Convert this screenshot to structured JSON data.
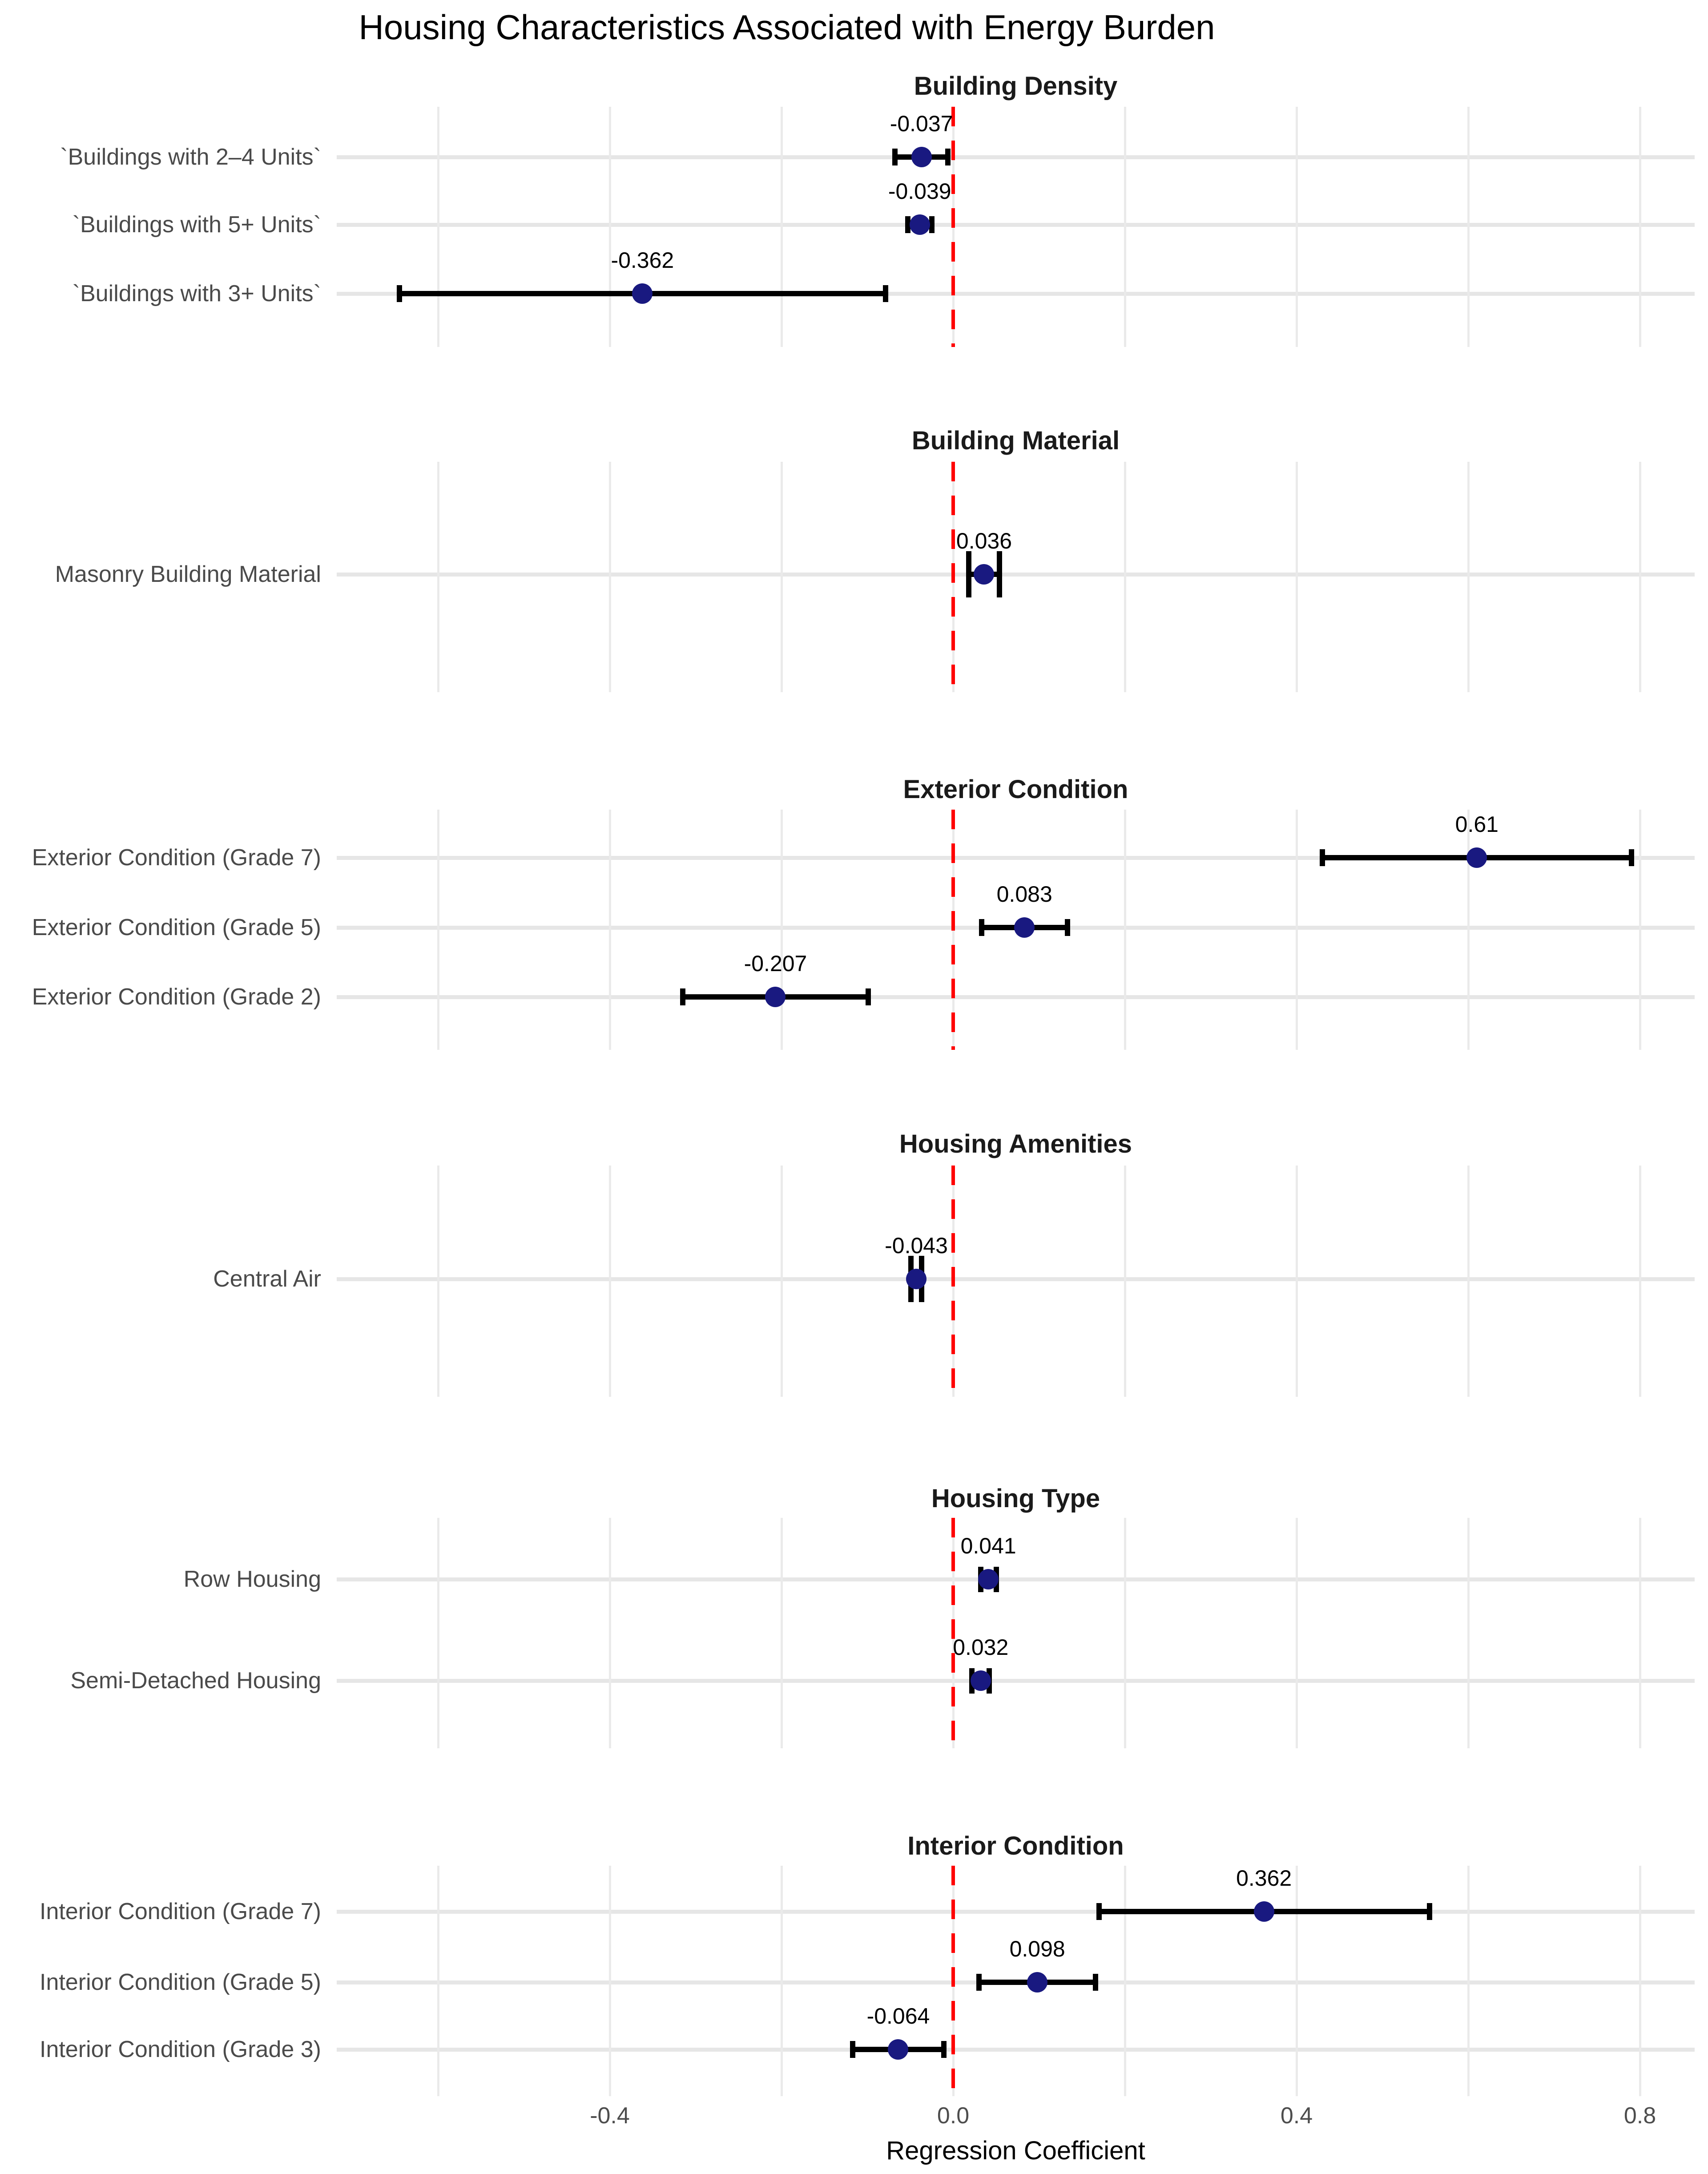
{
  "chart_data": {
    "type": "scatter",
    "subtype": "forest-plot-faceted",
    "title": "Housing Characteristics Associated with Energy Burden",
    "xlabel": "Regression Coefficient",
    "ylabel": "",
    "xlim": [
      -0.72,
      0.86
    ],
    "grid": "on",
    "legend_position": "none",
    "x_gridlines": [
      -0.6,
      -0.4,
      -0.2,
      0.0,
      0.2,
      0.4,
      0.6,
      0.8
    ],
    "x_ticks": [
      -0.4,
      0.0,
      0.4,
      0.8
    ],
    "x_tick_labels": [
      "-0.4",
      "0.0",
      "0.4",
      "0.8"
    ],
    "reference_line_x": 0,
    "facets": [
      {
        "title": "Building Density",
        "rows": [
          {
            "label": "`Buildings with 2–4 Units`",
            "estimate": -0.037,
            "estimate_text": "-0.037",
            "ci_low": -0.068,
            "ci_high": -0.006
          },
          {
            "label": "`Buildings with 5+ Units`",
            "estimate": -0.039,
            "estimate_text": "-0.039",
            "ci_low": -0.053,
            "ci_high": -0.025
          },
          {
            "label": "`Buildings with 3+ Units`",
            "estimate": -0.362,
            "estimate_text": "-0.362",
            "ci_low": -0.645,
            "ci_high": -0.079
          }
        ]
      },
      {
        "title": "Building Material",
        "rows": [
          {
            "label": "Masonry Building Material",
            "estimate": 0.036,
            "estimate_text": "0.036",
            "ci_low": 0.018,
            "ci_high": 0.054
          }
        ]
      },
      {
        "title": "Exterior Condition",
        "rows": [
          {
            "label": "Exterior Condition (Grade 7)",
            "estimate": 0.61,
            "estimate_text": "0.61",
            "ci_low": 0.43,
            "ci_high": 0.79
          },
          {
            "label": "Exterior Condition (Grade 5)",
            "estimate": 0.083,
            "estimate_text": "0.083",
            "ci_low": 0.033,
            "ci_high": 0.133
          },
          {
            "label": "Exterior Condition (Grade 2)",
            "estimate": -0.207,
            "estimate_text": "-0.207",
            "ci_low": -0.315,
            "ci_high": -0.099
          }
        ]
      },
      {
        "title": "Housing Amenities",
        "rows": [
          {
            "label": "Central Air",
            "estimate": -0.043,
            "estimate_text": "-0.043",
            "ci_low": -0.049,
            "ci_high": -0.037
          }
        ]
      },
      {
        "title": "Housing Type",
        "rows": [
          {
            "label": "Row Housing",
            "estimate": 0.041,
            "estimate_text": "0.041",
            "ci_low": 0.032,
            "ci_high": 0.05
          },
          {
            "label": "Semi-Detached Housing",
            "estimate": 0.032,
            "estimate_text": "0.032",
            "ci_low": 0.022,
            "ci_high": 0.042
          }
        ]
      },
      {
        "title": "Interior Condition",
        "rows": [
          {
            "label": "Interior Condition (Grade 7)",
            "estimate": 0.362,
            "estimate_text": "0.362",
            "ci_low": 0.17,
            "ci_high": 0.555
          },
          {
            "label": "Interior Condition (Grade 5)",
            "estimate": 0.098,
            "estimate_text": "0.098",
            "ci_low": 0.03,
            "ci_high": 0.166
          },
          {
            "label": "Interior Condition (Grade 3)",
            "estimate": -0.064,
            "estimate_text": "-0.064",
            "ci_low": -0.117,
            "ci_high": -0.011
          }
        ]
      }
    ],
    "colors": {
      "point": "#191980",
      "error_bar": "#000000",
      "reference_line": "#FF0000",
      "vertical_gridline": "#EAEAEA",
      "row_gridline": "#E6E6E6",
      "axis_text": "#4D4D4D",
      "row_label_text": "#4A4A4A",
      "value_label_text": "#000000",
      "background": "#FFFFFF"
    }
  }
}
